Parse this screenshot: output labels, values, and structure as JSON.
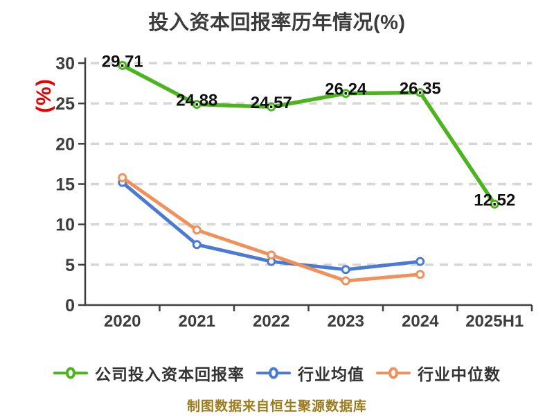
{
  "chart_data": {
    "type": "line",
    "title": "投入资本回报率历年情况(%)",
    "ylabel": "(%)",
    "ylabel_color": "#e60000",
    "categories": [
      "2020",
      "2021",
      "2022",
      "2023",
      "2024",
      "2025H1"
    ],
    "series": [
      {
        "key": "company-roic",
        "name": "公司投入资本回报率",
        "color": "#4cb41e",
        "values": [
          29.71,
          24.88,
          24.57,
          26.24,
          26.35,
          12.52
        ],
        "show_labels": true
      },
      {
        "key": "industry-mean",
        "name": "行业均值",
        "color": "#4a7ad1",
        "values": [
          15.2,
          7.5,
          5.4,
          4.4,
          5.4,
          null
        ],
        "show_labels": false
      },
      {
        "key": "industry-median",
        "name": "行业中位数",
        "color": "#f0905a",
        "values": [
          15.8,
          9.3,
          6.2,
          3.0,
          3.8,
          null
        ],
        "show_labels": false
      }
    ],
    "ylim": [
      0,
      30
    ],
    "ytick_interval": 5,
    "grid": "horizontal-dashed",
    "legend_position": "bottom",
    "axis_color": "#3f3f3f",
    "grid_color": "#d6d6d6",
    "tick_label_color": "#3d3d3d",
    "data_label_color": "#111111"
  },
  "footer": {
    "text": "制图数据来自恒生聚源数据库",
    "color": "#9d7b1b"
  }
}
